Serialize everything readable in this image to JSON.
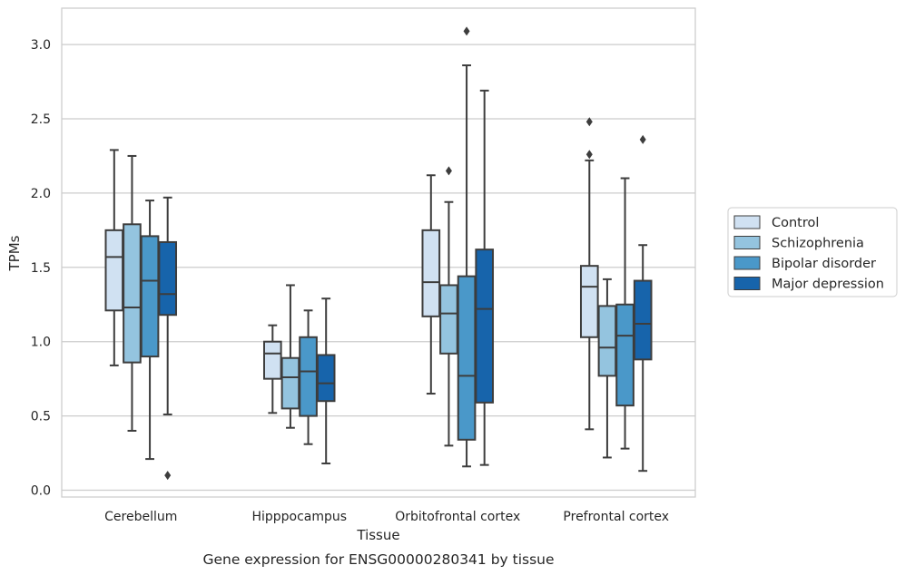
{
  "chart_data": {
    "type": "boxplot",
    "caption": "Gene expression for ENSG00000280341 by tissue",
    "xlabel": "Tissue",
    "ylabel": "TPMs",
    "ylim": [
      -0.05,
      3.25
    ],
    "yticks": [
      "0.0",
      "0.5",
      "1.0",
      "1.5",
      "2.0",
      "2.5",
      "3.0"
    ],
    "grid": "horizontal",
    "legend_position": "outside-right",
    "categories": [
      "Cerebellum",
      "Hipppocampus",
      "Orbitofrontal cortex",
      "Prefrontal cortex"
    ],
    "series": [
      {
        "name": "Control",
        "color": "#d0e1f2",
        "boxes": [
          {
            "whislo": 0.84,
            "q1": 1.21,
            "med": 1.57,
            "q3": 1.75,
            "whishi": 2.29,
            "fliers": []
          },
          {
            "whislo": 0.52,
            "q1": 0.75,
            "med": 0.92,
            "q3": 1.0,
            "whishi": 1.11,
            "fliers": []
          },
          {
            "whislo": 0.65,
            "q1": 1.17,
            "med": 1.4,
            "q3": 1.75,
            "whishi": 2.12,
            "fliers": []
          },
          {
            "whislo": 0.41,
            "q1": 1.03,
            "med": 1.37,
            "q3": 1.51,
            "whishi": 2.22,
            "fliers": [
              2.26,
              2.48
            ]
          }
        ]
      },
      {
        "name": "Schizophrenia",
        "color": "#94c4df",
        "boxes": [
          {
            "whislo": 0.4,
            "q1": 0.86,
            "med": 1.23,
            "q3": 1.79,
            "whishi": 2.25,
            "fliers": []
          },
          {
            "whislo": 0.42,
            "q1": 0.55,
            "med": 0.76,
            "q3": 0.89,
            "whishi": 1.38,
            "fliers": []
          },
          {
            "whislo": 0.3,
            "q1": 0.92,
            "med": 1.19,
            "q3": 1.38,
            "whishi": 1.94,
            "fliers": [
              2.15
            ]
          },
          {
            "whislo": 0.22,
            "q1": 0.77,
            "med": 0.96,
            "q3": 1.24,
            "whishi": 1.42,
            "fliers": []
          }
        ]
      },
      {
        "name": "Bipolar disorder",
        "color": "#4a98c9",
        "boxes": [
          {
            "whislo": 0.21,
            "q1": 0.9,
            "med": 1.41,
            "q3": 1.71,
            "whishi": 1.95,
            "fliers": []
          },
          {
            "whislo": 0.31,
            "q1": 0.5,
            "med": 0.8,
            "q3": 1.03,
            "whishi": 1.21,
            "fliers": []
          },
          {
            "whislo": 0.16,
            "q1": 0.34,
            "med": 0.77,
            "q3": 1.44,
            "whishi": 2.86,
            "fliers": [
              3.09
            ]
          },
          {
            "whislo": 0.28,
            "q1": 0.57,
            "med": 1.04,
            "q3": 1.25,
            "whishi": 2.1,
            "fliers": []
          }
        ]
      },
      {
        "name": "Major depression",
        "color": "#1764ab",
        "boxes": [
          {
            "whislo": 0.51,
            "q1": 1.18,
            "med": 1.32,
            "q3": 1.67,
            "whishi": 1.97,
            "fliers": [
              0.1
            ]
          },
          {
            "whislo": 0.18,
            "q1": 0.6,
            "med": 0.72,
            "q3": 0.91,
            "whishi": 1.29,
            "fliers": []
          },
          {
            "whislo": 0.17,
            "q1": 0.59,
            "med": 1.22,
            "q3": 1.62,
            "whishi": 2.69,
            "fliers": []
          },
          {
            "whislo": 0.13,
            "q1": 0.88,
            "med": 1.12,
            "q3": 1.41,
            "whishi": 1.65,
            "fliers": [
              2.36
            ]
          }
        ]
      }
    ]
  }
}
